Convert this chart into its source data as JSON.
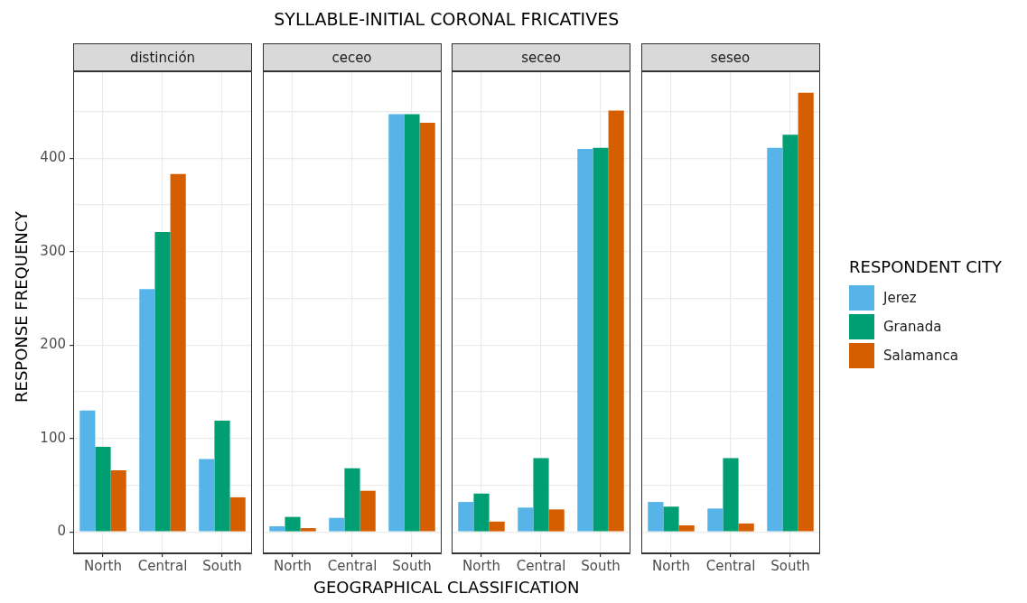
{
  "chart_data": [
    {
      "type": "bar",
      "title": "distinción",
      "categories": [
        "North",
        "Central",
        "South"
      ],
      "ylabel": "RESPONSE FREQUENCY",
      "legend_title": "RESPONDENT CITY",
      "legend": "right",
      "grid": true,
      "ylim": [
        -23,
        493
      ],
      "yticks": [
        0,
        {
          "value": 50,
          "label": null
        },
        100,
        {
          "value": 150,
          "label": null
        },
        200,
        {
          "value": 250,
          "label": null
        },
        300,
        {
          "value": 350,
          "label": null
        },
        400,
        {
          "value": 450,
          "label": null
        }
      ],
      "series": [
        {
          "name": "Jerez",
          "color": "#56b4e9",
          "values": [
            130,
            260,
            78
          ]
        },
        {
          "name": "Granada",
          "color": "#009e73",
          "values": [
            91,
            321,
            119
          ]
        },
        {
          "name": "Salamanca",
          "color": "#d55e00",
          "values": [
            66,
            383,
            37
          ]
        }
      ]
    },
    {
      "type": "bar",
      "title": "ceceo",
      "categories": [
        "North",
        "Central",
        "South"
      ],
      "grid": true,
      "tick_labels": "x",
      "ylim": [
        -23,
        493
      ],
      "yticks": [
        0,
        {
          "value": 50,
          "label": null
        },
        100,
        {
          "value": 150,
          "label": null
        },
        200,
        {
          "value": 250,
          "label": null
        },
        300,
        {
          "value": 350,
          "label": null
        },
        400,
        {
          "value": 450,
          "label": null
        }
      ],
      "series": [
        {
          "color": "#56b4e9",
          "values": [
            6,
            15,
            447
          ]
        },
        {
          "color": "#009e73",
          "values": [
            16,
            68,
            447
          ]
        },
        {
          "color": "#d55e00",
          "values": [
            4,
            44,
            438
          ]
        }
      ]
    },
    {
      "type": "bar",
      "title": "seceo",
      "categories": [
        "North",
        "Central",
        "South"
      ],
      "grid": true,
      "tick_labels": "x",
      "xlabel": "GEOGRAPHICAL CLASSIFICATION",
      "ylim": [
        -23,
        493
      ],
      "yticks": [
        0,
        {
          "value": 50,
          "label": null
        },
        100,
        {
          "value": 150,
          "label": null
        },
        200,
        {
          "value": 250,
          "label": null
        },
        300,
        {
          "value": 350,
          "label": null
        },
        400,
        {
          "value": 450,
          "label": null
        }
      ],
      "series": [
        {
          "color": "#56b4e9",
          "values": [
            32,
            26,
            410
          ]
        },
        {
          "color": "#009e73",
          "values": [
            41,
            79,
            411
          ]
        },
        {
          "color": "#d55e00",
          "values": [
            11,
            24,
            451
          ]
        }
      ]
    },
    {
      "type": "bar",
      "title": "seseo",
      "subtitle": "SYLLABLE-INITIAL CORONAL FRICATIVES",
      "categories": [
        "North",
        "Central",
        "South"
      ],
      "grid": true,
      "tick_labels": "x",
      "ylim": [
        -23,
        493
      ],
      "yticks": [
        0,
        {
          "value": 50,
          "label": null
        },
        100,
        {
          "value": 150,
          "label": null
        },
        200,
        {
          "value": 250,
          "label": null
        },
        300,
        {
          "value": 350,
          "label": null
        },
        400,
        {
          "value": 450,
          "label": null
        }
      ],
      "series": [
        {
          "color": "#56b4e9",
          "values": [
            32,
            25,
            411
          ]
        },
        {
          "color": "#009e73",
          "values": [
            27,
            79,
            425
          ]
        },
        {
          "color": "#d55e00",
          "values": [
            7,
            9,
            470
          ]
        }
      ]
    }
  ]
}
